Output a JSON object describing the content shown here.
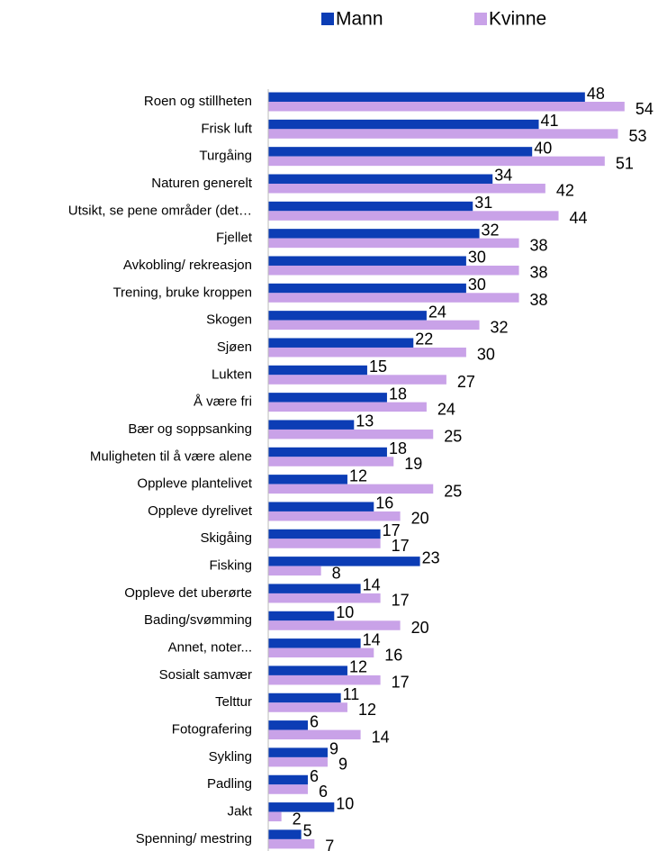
{
  "chart_data": {
    "type": "bar",
    "orientation": "horizontal",
    "categories": [
      "Roen og stillheten",
      "Frisk luft",
      "Turgåing",
      "Naturen generelt",
      "Utsikt, se pene områder (det…",
      "Fjellet",
      "Avkobling/ rekreasjon",
      "Trening, bruke kroppen",
      "Skogen",
      "Sjøen",
      "Lukten",
      "Å være fri",
      "Bær og soppsanking",
      "Muligheten til å være alene",
      "Oppleve plantelivet",
      "Oppleve dyrelivet",
      "Skigåing",
      "Fisking",
      "Oppleve det uberørte",
      "Bading/svømming",
      "Annet, noter...",
      "Sosialt samvær",
      "Telttur",
      "Fotografering",
      "Sykling",
      "Padling",
      "Jakt",
      "Spenning/ mestring"
    ],
    "series": [
      {
        "name": "Mann",
        "color": "#0c3db5",
        "values": [
          48,
          41,
          40,
          34,
          31,
          32,
          30,
          30,
          24,
          22,
          15,
          18,
          13,
          18,
          12,
          16,
          17,
          23,
          14,
          10,
          14,
          12,
          11,
          6,
          9,
          6,
          10,
          5
        ]
      },
      {
        "name": "Kvinne",
        "color": "#c9a2e8",
        "values": [
          54,
          53,
          51,
          42,
          44,
          38,
          38,
          38,
          32,
          30,
          27,
          24,
          25,
          19,
          25,
          20,
          17,
          8,
          17,
          20,
          16,
          17,
          12,
          14,
          9,
          6,
          2,
          7
        ]
      }
    ],
    "legend": "top"
  }
}
